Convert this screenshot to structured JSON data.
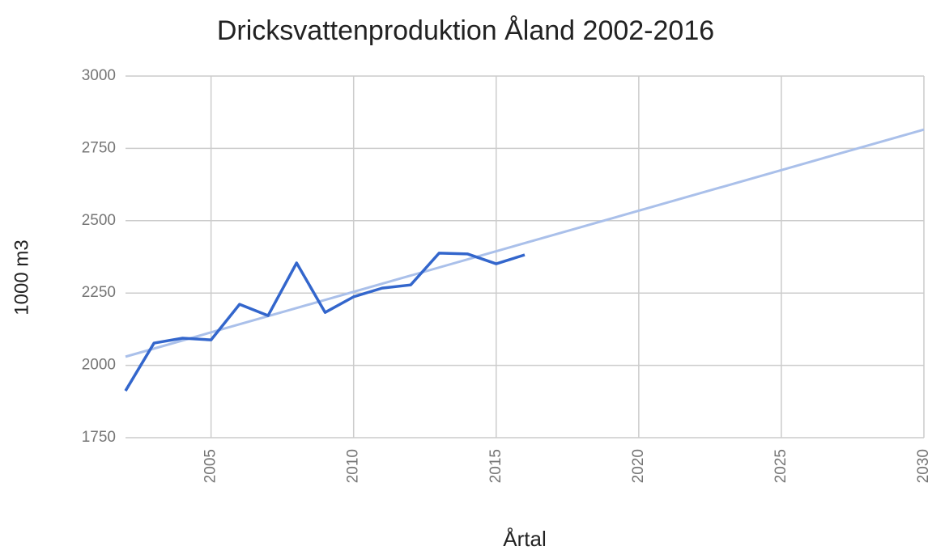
{
  "chart_data": {
    "type": "line",
    "title": "Dricksvattenproduktion Åland 2002-2016",
    "x_label": "Årtal",
    "y_label": "1000 m3",
    "x": [
      2002,
      2003,
      2004,
      2005,
      2006,
      2007,
      2008,
      2009,
      2010,
      2011,
      2012,
      2013,
      2014,
      2015,
      2016
    ],
    "values": [
      1912,
      2077,
      2094,
      2088,
      2211,
      2172,
      2354,
      2183,
      2237,
      2267,
      2278,
      2388,
      2385,
      2351,
      2382
    ],
    "color": "#3366cc",
    "trendline": {
      "x": [
        2002,
        2030
      ],
      "values": [
        2030,
        2815
      ],
      "color": "#aac0ea"
    },
    "xlim": [
      2002,
      2030
    ],
    "xticks": [
      2005,
      2010,
      2015,
      2020,
      2025,
      2030
    ],
    "ylim": [
      1750,
      3000
    ],
    "yticks": [
      1750,
      2000,
      2250,
      2500,
      2750,
      3000
    ],
    "grid": true
  }
}
